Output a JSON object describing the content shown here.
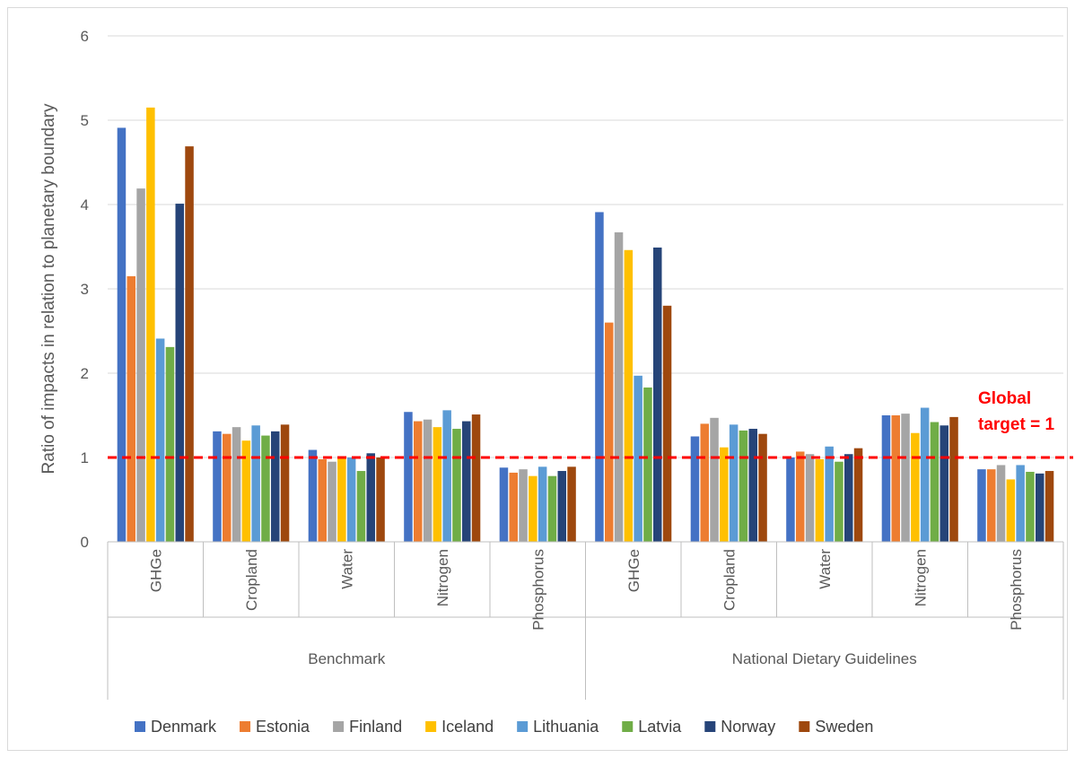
{
  "chart_data": {
    "type": "bar",
    "ylabel": "Ratio of impacts in relation to planetary boundary",
    "xlabel": "",
    "ylim": [
      0,
      6
    ],
    "yticks": [
      0,
      1,
      2,
      3,
      4,
      5,
      6
    ],
    "grid": "horizontal",
    "legend": "bottom",
    "groups": [
      {
        "name": "Benchmark",
        "categories": [
          "GHGe",
          "Cropland",
          "Water",
          "Nitrogen",
          "Phosphorus"
        ]
      },
      {
        "name": "National Dietary Guidelines",
        "categories": [
          "GHGe",
          "Cropland",
          "Water",
          "Nitrogen",
          "Phosphorus"
        ]
      }
    ],
    "series": [
      {
        "name": "Denmark",
        "color": "#4472c4",
        "values": [
          4.91,
          1.31,
          1.09,
          1.54,
          0.88,
          3.91,
          1.25,
          1.0,
          1.5,
          0.86
        ]
      },
      {
        "name": "Estonia",
        "color": "#ed7d31",
        "values": [
          3.15,
          1.28,
          0.98,
          1.43,
          0.82,
          2.6,
          1.4,
          1.07,
          1.5,
          0.86
        ]
      },
      {
        "name": "Finland",
        "color": "#a5a5a5",
        "values": [
          4.19,
          1.36,
          0.95,
          1.45,
          0.86,
          3.67,
          1.47,
          1.04,
          1.52,
          0.91
        ]
      },
      {
        "name": "Iceland",
        "color": "#ffc000",
        "values": [
          5.15,
          1.2,
          1.0,
          1.36,
          0.78,
          3.46,
          1.12,
          0.98,
          1.29,
          0.74
        ]
      },
      {
        "name": "Lithuania",
        "color": "#5b9bd5",
        "values": [
          2.41,
          1.38,
          1.0,
          1.56,
          0.89,
          1.97,
          1.39,
          1.13,
          1.59,
          0.91
        ]
      },
      {
        "name": "Latvia",
        "color": "#70ad47",
        "values": [
          2.31,
          1.26,
          0.84,
          1.34,
          0.78,
          1.83,
          1.32,
          0.95,
          1.42,
          0.83
        ]
      },
      {
        "name": "Norway",
        "color": "#264478",
        "values": [
          4.01,
          1.31,
          1.05,
          1.43,
          0.84,
          3.49,
          1.34,
          1.04,
          1.38,
          0.81
        ]
      },
      {
        "name": "Sweden",
        "color": "#9e480e",
        "values": [
          4.69,
          1.39,
          1.0,
          1.51,
          0.89,
          2.8,
          1.28,
          1.11,
          1.48,
          0.84
        ]
      }
    ],
    "reference_line": {
      "value": 1,
      "color": "#ff0000",
      "style": "dashed"
    },
    "annotation": {
      "lines": [
        "Global",
        "target = 1"
      ],
      "color": "#ff0000"
    }
  }
}
